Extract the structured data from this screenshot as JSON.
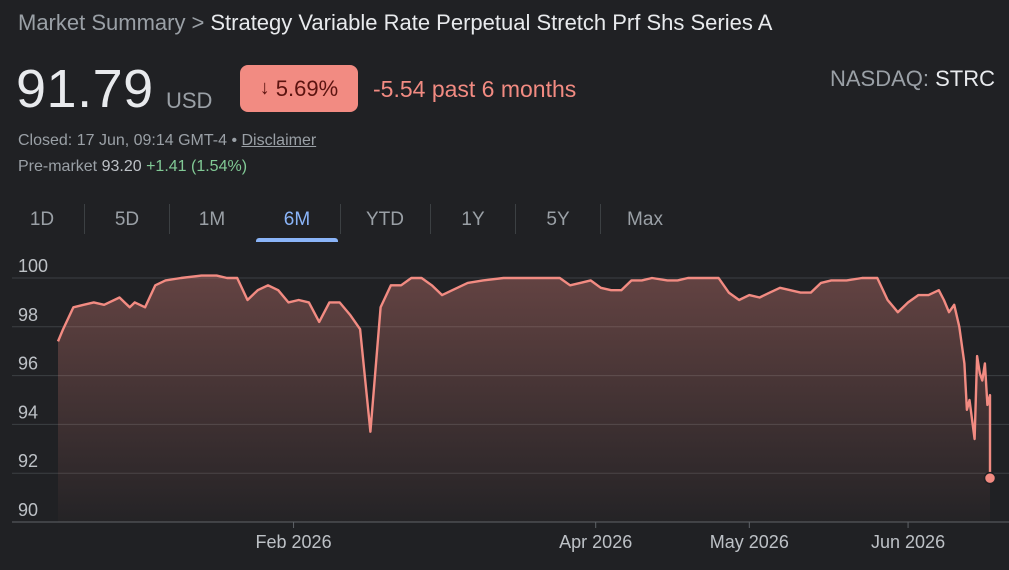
{
  "header": {
    "breadcrumb_root": "Market Summary",
    "breadcrumb_sep": ">",
    "title": "Strategy Variable Rate Perpetual Stretch Prf Shs Series A"
  },
  "quote": {
    "price": "91.79",
    "currency": "USD",
    "change_arrow": "↓",
    "change_pct": "5.69%",
    "period_change": "-5.54 past 6 months",
    "exchange": "NASDAQ:",
    "ticker": "STRC",
    "closed_text": "Closed: 17 Jun, 09:14 GMT-4 •",
    "disclaimer": "Disclaimer",
    "premarket_label": "Pre-market",
    "premarket_price": "93.20",
    "premarket_change": "+1.41 (1.54%)"
  },
  "tabs": [
    {
      "label": "1D"
    },
    {
      "label": "5D"
    },
    {
      "label": "1M"
    },
    {
      "label": "6M",
      "active": true
    },
    {
      "label": "YTD"
    },
    {
      "label": "1Y"
    },
    {
      "label": "5Y"
    },
    {
      "label": "Max"
    }
  ],
  "colors": {
    "line": "#f28b82",
    "negative": "#f28b82",
    "positive": "#81c995",
    "active_tab": "#8ab4f8",
    "background": "#202124"
  },
  "chart_data": {
    "type": "area",
    "ylim": [
      90,
      100
    ],
    "yticks": [
      90,
      92,
      94,
      96,
      98,
      100
    ],
    "xlim": [
      "2025-12-17",
      "2026-06-17"
    ],
    "xticks": [
      {
        "date": "2026-02-01",
        "label": "Feb 2026"
      },
      {
        "date": "2026-04-01",
        "label": "Apr 2026"
      },
      {
        "date": "2026-05-01",
        "label": "May 2026"
      },
      {
        "date": "2026-06-01",
        "label": "Jun 2026"
      }
    ],
    "grid": true,
    "series": [
      {
        "values": [
          [
            "2025-12-17",
            97.4
          ],
          [
            "2025-12-18",
            97.9
          ],
          [
            "2025-12-20",
            98.8
          ],
          [
            "2025-12-22",
            98.9
          ],
          [
            "2025-12-24",
            99.0
          ],
          [
            "2025-12-26",
            98.9
          ],
          [
            "2025-12-29",
            99.2
          ],
          [
            "2025-12-31",
            98.8
          ],
          [
            "2026-01-01",
            99.0
          ],
          [
            "2026-01-03",
            98.8
          ],
          [
            "2026-01-05",
            99.7
          ],
          [
            "2026-01-07",
            99.9
          ],
          [
            "2026-01-10",
            100.0
          ],
          [
            "2026-01-14",
            100.1
          ],
          [
            "2026-01-17",
            100.1
          ],
          [
            "2026-01-19",
            100.0
          ],
          [
            "2026-01-21",
            100.0
          ],
          [
            "2026-01-23",
            99.1
          ],
          [
            "2026-01-25",
            99.5
          ],
          [
            "2026-01-27",
            99.7
          ],
          [
            "2026-01-29",
            99.5
          ],
          [
            "2026-01-31",
            99.0
          ],
          [
            "2026-02-02",
            99.1
          ],
          [
            "2026-02-04",
            99.0
          ],
          [
            "2026-02-06",
            98.2
          ],
          [
            "2026-02-08",
            99.0
          ],
          [
            "2026-02-10",
            99.0
          ],
          [
            "2026-02-12",
            98.5
          ],
          [
            "2026-02-14",
            97.9
          ],
          [
            "2026-02-16",
            93.7
          ],
          [
            "2026-02-18",
            98.8
          ],
          [
            "2026-02-20",
            99.7
          ],
          [
            "2026-02-22",
            99.7
          ],
          [
            "2026-02-24",
            100.0
          ],
          [
            "2026-02-26",
            100.0
          ],
          [
            "2026-02-28",
            99.7
          ],
          [
            "2026-03-02",
            99.3
          ],
          [
            "2026-03-04",
            99.5
          ],
          [
            "2026-03-07",
            99.8
          ],
          [
            "2026-03-10",
            99.9
          ],
          [
            "2026-03-14",
            100.0
          ],
          [
            "2026-03-18",
            100.0
          ],
          [
            "2026-03-22",
            100.0
          ],
          [
            "2026-03-25",
            100.0
          ],
          [
            "2026-03-27",
            99.7
          ],
          [
            "2026-03-29",
            99.8
          ],
          [
            "2026-03-31",
            99.9
          ],
          [
            "2026-04-02",
            99.6
          ],
          [
            "2026-04-04",
            99.5
          ],
          [
            "2026-04-06",
            99.5
          ],
          [
            "2026-04-08",
            99.9
          ],
          [
            "2026-04-10",
            99.9
          ],
          [
            "2026-04-12",
            100.0
          ],
          [
            "2026-04-15",
            99.9
          ],
          [
            "2026-04-17",
            99.9
          ],
          [
            "2026-04-19",
            100.0
          ],
          [
            "2026-04-22",
            100.0
          ],
          [
            "2026-04-25",
            100.0
          ],
          [
            "2026-04-27",
            99.4
          ],
          [
            "2026-04-29",
            99.1
          ],
          [
            "2026-05-01",
            99.3
          ],
          [
            "2026-05-03",
            99.2
          ],
          [
            "2026-05-05",
            99.4
          ],
          [
            "2026-05-07",
            99.6
          ],
          [
            "2026-05-09",
            99.5
          ],
          [
            "2026-05-11",
            99.4
          ],
          [
            "2026-05-13",
            99.4
          ],
          [
            "2026-05-15",
            99.8
          ],
          [
            "2026-05-17",
            99.9
          ],
          [
            "2026-05-20",
            99.9
          ],
          [
            "2026-05-23",
            100.0
          ],
          [
            "2026-05-26",
            100.0
          ],
          [
            "2026-05-28",
            99.1
          ],
          [
            "2026-05-30",
            98.6
          ],
          [
            "2026-06-01",
            99.0
          ],
          [
            "2026-06-03",
            99.3
          ],
          [
            "2026-06-05",
            99.3
          ],
          [
            "2026-06-07",
            99.5
          ],
          [
            "2026-06-08",
            99.1
          ],
          [
            "2026-06-09",
            98.6
          ],
          [
            "2026-06-10",
            98.9
          ],
          [
            "2026-06-11",
            98.0
          ],
          [
            "2026-06-12",
            96.5
          ],
          [
            "2026-06-12",
            94.6
          ],
          [
            "2026-06-13",
            95.0
          ],
          [
            "2026-06-14",
            93.4
          ],
          [
            "2026-06-14",
            96.8
          ],
          [
            "2026-06-15",
            96.1
          ],
          [
            "2026-06-15",
            95.8
          ],
          [
            "2026-06-16",
            96.5
          ],
          [
            "2026-06-16",
            94.8
          ],
          [
            "2026-06-17",
            95.2
          ],
          [
            "2026-06-17",
            91.8
          ]
        ]
      }
    ]
  }
}
